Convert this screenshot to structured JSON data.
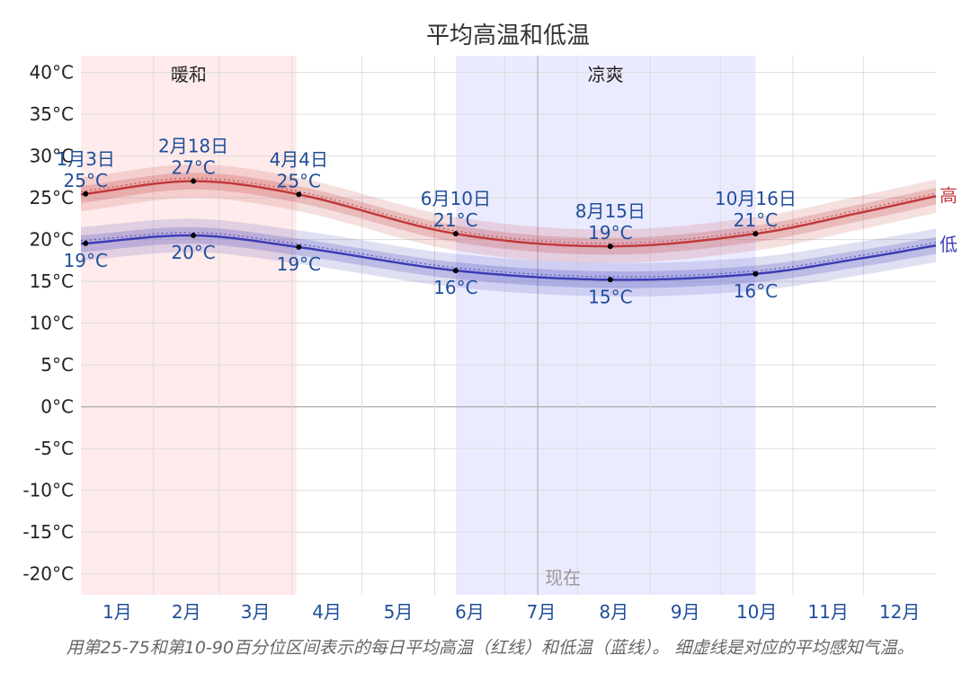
{
  "chart_data": {
    "type": "line",
    "title": "平均高温和低温",
    "ylim": [
      -22.5,
      42
    ],
    "y_ticks": [
      40,
      35,
      30,
      25,
      20,
      15,
      10,
      5,
      0,
      -5,
      -10,
      -15,
      -20
    ],
    "y_tick_labels": [
      "40°C",
      "35°C",
      "30°C",
      "25°C",
      "20°C",
      "15°C",
      "10°C",
      "5°C",
      "0°C",
      "-5°C",
      "-10°C",
      "-15°C",
      "-20°C"
    ],
    "x_range": [
      1,
      366
    ],
    "month_labels": [
      "1月",
      "2月",
      "3月",
      "4月",
      "5月",
      "6月",
      "7月",
      "8月",
      "9月",
      "10月",
      "11月",
      "12月"
    ],
    "month_starts": [
      1,
      32,
      60,
      91,
      121,
      152,
      182,
      213,
      244,
      274,
      305,
      335
    ],
    "grid": true,
    "seasons": [
      {
        "label": "暖和",
        "start": 1,
        "end": 93,
        "color": "#ffe6e6"
      },
      {
        "label": "凉爽",
        "start": 161,
        "end": 289,
        "color": "#e6e6ff"
      }
    ],
    "now_label": "现在",
    "now_day": 196,
    "series": [
      {
        "name": "高",
        "color": "#c0393b",
        "x": [
          1,
          49,
          94,
          161,
          227,
          289,
          335,
          366
        ],
        "values": [
          25.4,
          27.0,
          25.4,
          20.7,
          19.2,
          20.7,
          23.3,
          25.2
        ]
      },
      {
        "name": "低",
        "color": "#3c3cb4",
        "x": [
          1,
          49,
          94,
          161,
          227,
          289,
          335,
          366
        ],
        "values": [
          19.5,
          20.5,
          19.1,
          16.3,
          15.2,
          15.9,
          17.8,
          19.3
        ]
      }
    ],
    "annotations": [
      {
        "date": "1月3日",
        "high": "25°C",
        "low": "19°C",
        "day": 3
      },
      {
        "date": "2月18日",
        "high": "27°C",
        "low": "20°C",
        "day": 49
      },
      {
        "date": "4月4日",
        "high": "25°C",
        "low": "19°C",
        "day": 94
      },
      {
        "date": "6月10日",
        "high": "21°C",
        "low": "16°C",
        "day": 161
      },
      {
        "date": "8月15日",
        "high": "19°C",
        "low": "15°C",
        "day": 227
      },
      {
        "date": "10月16日",
        "high": "21°C",
        "low": "16°C",
        "day": 289
      }
    ]
  },
  "caption": "用第25-75和第10-90百分位区间表示的每日平均高温（红线）和低温（蓝线）。 细虚线是对应的平均感知气温。",
  "colors": {
    "annotation_text": "#1f4e9a",
    "axis_text": "#222222",
    "grid": "#dddddd",
    "caption": "#666666"
  }
}
